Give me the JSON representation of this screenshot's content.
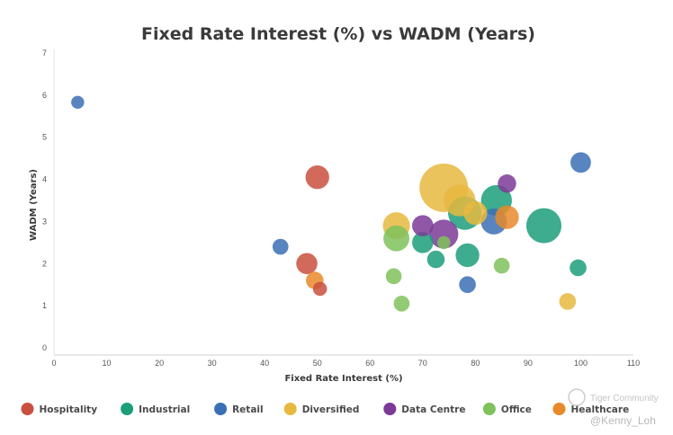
{
  "chart_data": {
    "type": "scatter",
    "variant": "bubble",
    "title": "Fixed Rate Interest (%) vs WADM (Years)",
    "xlabel": "Fixed Rate Interest (%)",
    "ylabel": "WADM (Years)",
    "xlim": [
      0,
      110
    ],
    "ylim": [
      0,
      7
    ],
    "x_ticks": [
      "0",
      "10",
      "20",
      "30",
      "40",
      "50",
      "60",
      "70",
      "80",
      "90",
      "100",
      "110"
    ],
    "y_ticks": [
      "0",
      "1",
      "2",
      "3",
      "4",
      "5",
      "6",
      "7"
    ],
    "grid": false,
    "legend_position": "bottom",
    "series": [
      {
        "name": "Hospitality",
        "color": "#c9503e",
        "points": [
          {
            "x": 50.0,
            "y": 4.05,
            "size": 1.0
          },
          {
            "x": 48.0,
            "y": 2.0,
            "size": 0.8
          },
          {
            "x": 50.5,
            "y": 1.4,
            "size": 0.35
          }
        ]
      },
      {
        "name": "Industrial",
        "color": "#1c9e7a",
        "points": [
          {
            "x": 84.0,
            "y": 3.5,
            "size": 1.7
          },
          {
            "x": 93.0,
            "y": 2.9,
            "size": 2.2
          },
          {
            "x": 78.0,
            "y": 3.2,
            "size": 2.0
          },
          {
            "x": 78.5,
            "y": 2.2,
            "size": 1.0
          },
          {
            "x": 70.0,
            "y": 2.5,
            "size": 0.8
          },
          {
            "x": 72.5,
            "y": 2.1,
            "size": 0.55
          },
          {
            "x": 99.5,
            "y": 1.9,
            "size": 0.5
          }
        ]
      },
      {
        "name": "Retail",
        "color": "#3b6fb5",
        "points": [
          {
            "x": 4.5,
            "y": 5.83,
            "size": 0.3
          },
          {
            "x": 43.0,
            "y": 2.4,
            "size": 0.45
          },
          {
            "x": 100.0,
            "y": 4.4,
            "size": 0.75
          },
          {
            "x": 83.5,
            "y": 3.0,
            "size": 1.2
          },
          {
            "x": 78.5,
            "y": 1.5,
            "size": 0.5
          }
        ]
      },
      {
        "name": "Diversified",
        "color": "#e8b93f",
        "points": [
          {
            "x": 74.0,
            "y": 3.8,
            "size": 4.2
          },
          {
            "x": 77.0,
            "y": 3.5,
            "size": 1.8
          },
          {
            "x": 65.0,
            "y": 2.9,
            "size": 1.3
          },
          {
            "x": 80.0,
            "y": 3.2,
            "size": 1.0
          },
          {
            "x": 97.5,
            "y": 1.1,
            "size": 0.5
          }
        ]
      },
      {
        "name": "Data Centre",
        "color": "#7b3a96",
        "points": [
          {
            "x": 74.0,
            "y": 2.7,
            "size": 1.5
          },
          {
            "x": 70.0,
            "y": 2.9,
            "size": 0.8
          },
          {
            "x": 86.0,
            "y": 3.9,
            "size": 0.6
          }
        ]
      },
      {
        "name": "Office",
        "color": "#7fc25b",
        "points": [
          {
            "x": 65.0,
            "y": 2.6,
            "size": 1.2
          },
          {
            "x": 64.5,
            "y": 1.7,
            "size": 0.45
          },
          {
            "x": 66.0,
            "y": 1.05,
            "size": 0.45
          },
          {
            "x": 85.0,
            "y": 1.95,
            "size": 0.45
          },
          {
            "x": 74.0,
            "y": 2.5,
            "size": 0.3
          }
        ]
      },
      {
        "name": "Healthcare",
        "color": "#e8892a",
        "points": [
          {
            "x": 86.0,
            "y": 3.1,
            "size": 1.0
          },
          {
            "x": 49.5,
            "y": 1.6,
            "size": 0.55
          }
        ]
      }
    ]
  },
  "watermark": {
    "community": "Tiger Community",
    "handle": "@Kenny_Loh"
  }
}
